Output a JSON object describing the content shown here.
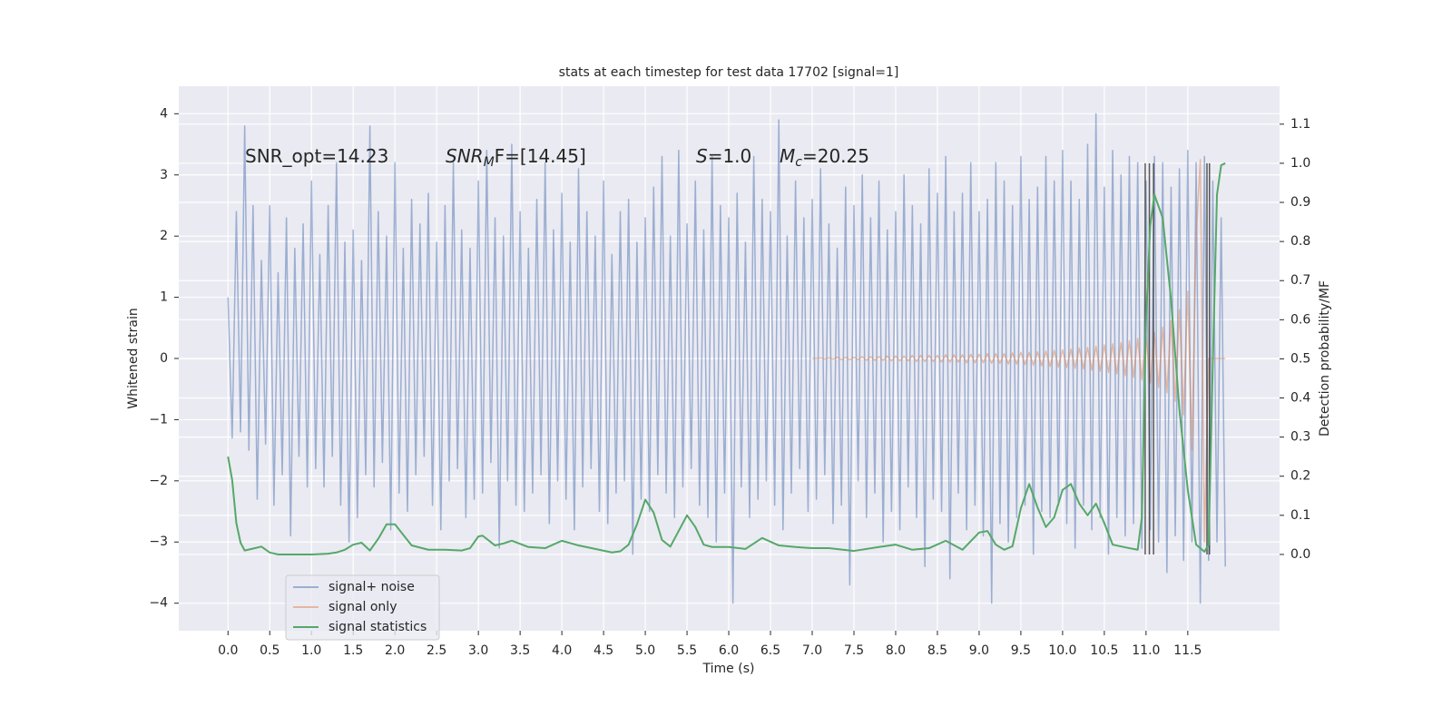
{
  "chart_data": {
    "type": "line",
    "title": "stats at each timestep for test data 17702 [signal=1]",
    "xlabel": "Time (s)",
    "ylabel": "Whitened strain",
    "y2label": "Detection probability/MF",
    "xlim": [
      -0.59,
      12.6
    ],
    "ylim": [
      -4.45,
      4.45
    ],
    "y2lim": [
      -0.195,
      1.197
    ],
    "xticks": [
      {
        "value": 0,
        "label": "0.0"
      },
      0.5,
      {
        "value": 1,
        "label": "1.0"
      },
      1.5,
      {
        "value": 2,
        "label": "2.0"
      },
      2.5,
      {
        "value": 3,
        "label": "3.0"
      },
      3.5,
      {
        "value": 4,
        "label": "4.0"
      },
      4.5,
      {
        "value": 5,
        "label": "5.0"
      },
      5.5,
      {
        "value": 6,
        "label": "6.0"
      },
      6.5,
      {
        "value": 7,
        "label": "7.0"
      },
      7.5,
      {
        "value": 8,
        "label": "8.0"
      },
      8.5,
      {
        "value": 9,
        "label": "9.0"
      },
      9.5,
      {
        "value": 10,
        "label": "10.0"
      },
      10.5,
      {
        "value": 11,
        "label": "11.0"
      },
      11.5
    ],
    "yticks": [
      {
        "value": -4,
        "label": "−4"
      },
      {
        "value": -3,
        "label": "−3"
      },
      {
        "value": -2,
        "label": "−2"
      },
      {
        "value": -1,
        "label": "−1"
      },
      0,
      1,
      2,
      3,
      4
    ],
    "y2ticks": [
      {
        "value": 0,
        "label": "0.0"
      },
      0.1,
      0.2,
      0.3,
      0.4,
      0.5,
      0.6,
      0.7,
      0.8,
      0.9,
      {
        "value": 1,
        "label": "1.0"
      },
      1.1
    ],
    "grid": true,
    "legend": "lower left",
    "background": "#eaeaf2",
    "annotations": [
      {
        "text": "SNR_opt=14.23"
      },
      {
        "italic": "SNR",
        "sub": "M",
        "text": "F=[14.45]"
      },
      {
        "italic": "S",
        "text": "=1.0"
      },
      {
        "italic": "M",
        "sub": "c",
        "text": "=20.25"
      }
    ],
    "vlines": {
      "x": [
        10.99,
        11.04,
        11.09,
        11.73,
        11.76
      ],
      "ymin": 0,
      "ymax": 1,
      "axis": "y2",
      "color": "#333333"
    },
    "series": [
      {
        "name": "signal+ noise",
        "color": "#4c72b0",
        "opacity": 0.5,
        "x": [
          0,
          0.05,
          0.1,
          0.15,
          0.2,
          0.25,
          0.3,
          0.35,
          0.4,
          0.45,
          0.5,
          0.55,
          0.6,
          0.65,
          0.7,
          0.75,
          0.8,
          0.85,
          0.9,
          0.95,
          1,
          1.05,
          1.1,
          1.15,
          1.2,
          1.25,
          1.3,
          1.35,
          1.4,
          1.45,
          1.5,
          1.55,
          1.6,
          1.65,
          1.7,
          1.75,
          1.8,
          1.85,
          1.9,
          1.95,
          2,
          2.05,
          2.1,
          2.15,
          2.2,
          2.25,
          2.3,
          2.35,
          2.4,
          2.45,
          2.5,
          2.55,
          2.6,
          2.65,
          2.7,
          2.75,
          2.8,
          2.85,
          2.9,
          2.95,
          3,
          3.05,
          3.1,
          3.15,
          3.2,
          3.25,
          3.3,
          3.35,
          3.4,
          3.45,
          3.5,
          3.55,
          3.6,
          3.65,
          3.7,
          3.75,
          3.8,
          3.85,
          3.9,
          3.95,
          4,
          4.05,
          4.1,
          4.15,
          4.2,
          4.25,
          4.3,
          4.35,
          4.4,
          4.45,
          4.5,
          4.55,
          4.6,
          4.65,
          4.7,
          4.75,
          4.8,
          4.85,
          4.9,
          4.95,
          5,
          5.05,
          5.1,
          5.15,
          5.2,
          5.25,
          5.3,
          5.35,
          5.4,
          5.45,
          5.5,
          5.55,
          5.6,
          5.65,
          5.7,
          5.75,
          5.8,
          5.85,
          5.9,
          5.95,
          6,
          6.05,
          6.1,
          6.15,
          6.2,
          6.25,
          6.3,
          6.35,
          6.4,
          6.45,
          6.5,
          6.55,
          6.6,
          6.65,
          6.7,
          6.75,
          6.8,
          6.85,
          6.9,
          6.95,
          7,
          7.05,
          7.1,
          7.15,
          7.2,
          7.25,
          7.3,
          7.35,
          7.4,
          7.45,
          7.5,
          7.55,
          7.6,
          7.65,
          7.7,
          7.75,
          7.8,
          7.85,
          7.9,
          7.95,
          8,
          8.05,
          8.1,
          8.15,
          8.2,
          8.25,
          8.3,
          8.35,
          8.4,
          8.45,
          8.5,
          8.55,
          8.6,
          8.65,
          8.7,
          8.75,
          8.8,
          8.85,
          8.9,
          8.95,
          9,
          9.05,
          9.1,
          9.15,
          9.2,
          9.25,
          9.3,
          9.35,
          9.4,
          9.45,
          9.5,
          9.55,
          9.6,
          9.65,
          9.7,
          9.75,
          9.8,
          9.85,
          9.9,
          9.95,
          10,
          10.05,
          10.1,
          10.15,
          10.2,
          10.25,
          10.3,
          10.35,
          10.4,
          10.45,
          10.5,
          10.55,
          10.6,
          10.65,
          10.7,
          10.75,
          10.8,
          10.85,
          10.9,
          10.95,
          11,
          11.05,
          11.1,
          11.15,
          11.2,
          11.25,
          11.3,
          11.35,
          11.4,
          11.45,
          11.5,
          11.55,
          11.6,
          11.65,
          11.7,
          11.75,
          11.8,
          11.85,
          11.9,
          11.95
        ],
        "values": [
          1.0,
          -1.3,
          2.4,
          -1.2,
          3.8,
          -1.5,
          2.5,
          -2.3,
          1.6,
          -1.4,
          2.5,
          -2.4,
          1.4,
          -1.9,
          2.3,
          -2.9,
          1.8,
          -1.6,
          2.2,
          -2.1,
          2.9,
          -1.8,
          1.7,
          -2.1,
          2.5,
          -1.6,
          3.2,
          -2.4,
          1.9,
          -3.0,
          2.1,
          -2.6,
          1.6,
          -1.9,
          3.8,
          -2.1,
          2.4,
          -1.7,
          2.0,
          -2.8,
          3.2,
          -2.2,
          1.8,
          -2.5,
          2.6,
          -1.9,
          2.2,
          -1.6,
          2.7,
          -2.4,
          1.9,
          -2.8,
          2.5,
          -2.0,
          3.2,
          -1.8,
          2.1,
          -2.6,
          1.8,
          -2.3,
          2.9,
          -2.2,
          3.4,
          -1.7,
          2.3,
          -3.1,
          2.0,
          -2.0,
          3.5,
          -2.4,
          2.4,
          -2.5,
          1.8,
          -2.2,
          2.6,
          -1.9,
          3.2,
          -2.7,
          2.1,
          -2.0,
          2.7,
          -2.3,
          1.9,
          -2.8,
          3.1,
          -2.1,
          2.4,
          -1.8,
          2.0,
          -2.5,
          2.9,
          -2.7,
          1.7,
          -2.2,
          2.4,
          -2.0,
          2.6,
          -3.2,
          1.9,
          -2.3,
          2.3,
          -2.5,
          2.8,
          -1.9,
          3.3,
          -2.2,
          2.0,
          -2.6,
          3.4,
          -2.1,
          2.2,
          -1.8,
          2.9,
          -2.4,
          2.1,
          -2.6,
          3.3,
          -3.0,
          2.5,
          -2.2,
          2.3,
          -4.0,
          2.7,
          -2.1,
          1.9,
          -2.6,
          3.3,
          -2.3,
          2.6,
          -2.0,
          2.4,
          -2.4,
          3.9,
          -2.8,
          2.0,
          -2.2,
          2.9,
          -1.8,
          2.3,
          -2.5,
          2.6,
          -2.3,
          3.1,
          -1.9,
          2.2,
          -2.7,
          1.8,
          -2.4,
          2.8,
          -3.7,
          2.5,
          -2.0,
          3.0,
          -2.6,
          2.3,
          -2.2,
          2.9,
          -3.0,
          2.1,
          -2.5,
          2.4,
          -2.8,
          3.0,
          -2.1,
          2.5,
          -2.6,
          2.2,
          -3.4,
          3.1,
          -2.3,
          2.7,
          -2.5,
          3.3,
          -3.6,
          2.4,
          -2.2,
          2.7,
          -2.8,
          3.2,
          -2.4,
          2.4,
          -2.9,
          2.6,
          -4.0,
          3.2,
          -2.7,
          2.9,
          -3.0,
          2.5,
          -2.6,
          3.3,
          -2.4,
          2.6,
          -3.2,
          2.8,
          -2.5,
          3.3,
          -2.6,
          2.9,
          -2.4,
          3.4,
          -2.7,
          2.9,
          -3.1,
          2.6,
          -2.4,
          3.5,
          -2.8,
          4.0,
          -2.6,
          2.8,
          -3.2,
          3.4,
          -2.6,
          3.0,
          -2.9,
          3.3,
          -2.7,
          3.2,
          -3.1,
          2.9,
          -2.8,
          3.3,
          -3.0,
          3.2,
          -3.5,
          2.8,
          -2.9,
          3.1,
          -3.3,
          3.4,
          -3.0,
          3.2,
          -4.0,
          3.3,
          -3.3,
          2.9,
          -3.0,
          2.3,
          -3.4
        ]
      },
      {
        "name": "signal only",
        "color": "#dd8452",
        "opacity": 0.5,
        "x": [
          7,
          7.05,
          7.1,
          7.15,
          7.2,
          7.25,
          7.3,
          7.35,
          7.4,
          7.45,
          7.5,
          7.55,
          7.6,
          7.65,
          7.7,
          7.75,
          7.8,
          7.85,
          7.9,
          7.95,
          8,
          8.05,
          8.1,
          8.15,
          8.2,
          8.25,
          8.3,
          8.35,
          8.4,
          8.45,
          8.5,
          8.55,
          8.6,
          8.65,
          8.7,
          8.75,
          8.8,
          8.85,
          8.9,
          8.95,
          9,
          9.05,
          9.1,
          9.15,
          9.2,
          9.25,
          9.3,
          9.35,
          9.4,
          9.45,
          9.5,
          9.55,
          9.6,
          9.65,
          9.7,
          9.75,
          9.8,
          9.85,
          9.9,
          9.95,
          10,
          10.05,
          10.1,
          10.15,
          10.2,
          10.25,
          10.3,
          10.35,
          10.4,
          10.45,
          10.5,
          10.55,
          10.6,
          10.65,
          10.7,
          10.75,
          10.8,
          10.85,
          10.9,
          10.95,
          11,
          11.05,
          11.1,
          11.15,
          11.2,
          11.25,
          11.3,
          11.35,
          11.4,
          11.45,
          11.5,
          11.55,
          11.6,
          11.65,
          11.7,
          11.75,
          11.8,
          11.85,
          11.9,
          11.95
        ],
        "values": [
          0,
          0,
          0.01,
          -0.01,
          0.01,
          -0.01,
          0.02,
          -0.02,
          0.02,
          -0.02,
          0.02,
          -0.02,
          0.03,
          -0.03,
          0.03,
          -0.03,
          0.03,
          -0.03,
          0.04,
          -0.04,
          0.04,
          -0.04,
          0.04,
          -0.04,
          0.05,
          -0.05,
          0.05,
          -0.05,
          0.05,
          -0.05,
          0.05,
          -0.06,
          0.06,
          -0.06,
          0.06,
          -0.06,
          0.06,
          -0.07,
          0.07,
          -0.07,
          0.07,
          -0.07,
          0.08,
          -0.08,
          0.08,
          -0.08,
          0.08,
          -0.09,
          0.09,
          -0.09,
          0.1,
          -0.1,
          0.1,
          -0.11,
          0.11,
          -0.12,
          0.12,
          -0.13,
          0.13,
          -0.14,
          0.14,
          -0.15,
          0.15,
          -0.16,
          0.17,
          -0.17,
          0.18,
          -0.19,
          0.2,
          -0.21,
          0.22,
          -0.23,
          0.24,
          -0.25,
          0.26,
          -0.28,
          0.29,
          -0.31,
          0.33,
          -0.35,
          0.37,
          -0.4,
          0.43,
          -0.47,
          0.51,
          -0.56,
          0.62,
          -0.7,
          0.8,
          -0.92,
          1.1,
          -1.5,
          2.0,
          3.25,
          -3.0,
          0,
          0,
          0,
          0,
          0
        ]
      },
      {
        "name": "signal statistics",
        "color": "#55a868",
        "opacity": 1,
        "axis": "y2",
        "x": [
          0,
          0.05,
          0.1,
          0.15,
          0.2,
          0.3,
          0.4,
          0.5,
          0.6,
          0.8,
          1.0,
          1.2,
          1.3,
          1.4,
          1.5,
          1.6,
          1.7,
          1.8,
          1.9,
          2.0,
          2.1,
          2.2,
          2.4,
          2.6,
          2.8,
          2.9,
          3.0,
          3.05,
          3.2,
          3.3,
          3.4,
          3.6,
          3.8,
          4.0,
          4.2,
          4.4,
          4.6,
          4.7,
          4.8,
          4.9,
          5.0,
          5.1,
          5.2,
          5.3,
          5.4,
          5.5,
          5.6,
          5.7,
          5.8,
          6.0,
          6.2,
          6.4,
          6.6,
          6.8,
          7.0,
          7.2,
          7.5,
          7.8,
          8.0,
          8.2,
          8.4,
          8.6,
          8.8,
          9.0,
          9.1,
          9.2,
          9.3,
          9.4,
          9.5,
          9.6,
          9.7,
          9.8,
          9.9,
          10.0,
          10.1,
          10.2,
          10.3,
          10.4,
          10.5,
          10.6,
          10.8,
          10.9,
          10.95,
          11.0,
          11.05,
          11.1,
          11.2,
          11.3,
          11.4,
          11.5,
          11.6,
          11.7,
          11.75,
          11.8,
          11.85,
          11.9,
          11.95
        ],
        "values": [
          0.25,
          0.19,
          0.08,
          0.03,
          0.01,
          0.015,
          0.02,
          0.005,
          0,
          0,
          0,
          0.002,
          0.005,
          0.012,
          0.025,
          0.03,
          0.01,
          0.04,
          0.077,
          0.077,
          0.05,
          0.023,
          0.012,
          0.012,
          0.01,
          0.016,
          0.046,
          0.048,
          0.023,
          0.028,
          0.035,
          0.019,
          0.016,
          0.035,
          0.023,
          0.014,
          0.005,
          0.008,
          0.025,
          0.077,
          0.14,
          0.107,
          0.037,
          0.02,
          0.06,
          0.1,
          0.07,
          0.025,
          0.019,
          0.019,
          0.014,
          0.042,
          0.023,
          0.019,
          0.016,
          0.016,
          0.009,
          0.019,
          0.025,
          0.012,
          0.016,
          0.035,
          0.012,
          0.056,
          0.06,
          0.025,
          0.012,
          0.021,
          0.118,
          0.18,
          0.12,
          0.07,
          0.095,
          0.165,
          0.18,
          0.13,
          0.1,
          0.13,
          0.08,
          0.025,
          0.016,
          0.012,
          0.095,
          0.6,
          0.84,
          0.92,
          0.86,
          0.65,
          0.37,
          0.165,
          0.025,
          0.007,
          0.025,
          0.49,
          0.92,
          0.995,
          1.0
        ]
      }
    ]
  }
}
